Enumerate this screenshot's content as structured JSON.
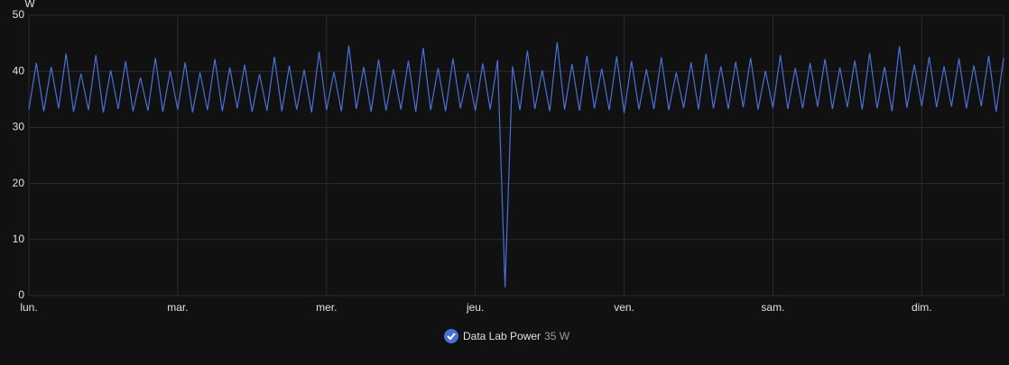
{
  "chart_data": {
    "type": "line",
    "y_label": "W",
    "xlim": [
      0,
      6.55
    ],
    "xticks": [
      {
        "value": 0,
        "label": "lun."
      },
      {
        "value": 1,
        "label": "mar."
      },
      {
        "value": 2,
        "label": "mer."
      },
      {
        "value": 3,
        "label": "jeu."
      },
      {
        "value": 4,
        "label": "ven."
      },
      {
        "value": 5,
        "label": "sam."
      },
      {
        "value": 6,
        "label": "dim."
      }
    ],
    "ylim": [
      0,
      50
    ],
    "yticks": [
      0,
      10,
      20,
      30,
      40,
      50
    ],
    "grid": true,
    "current_state": "35 W",
    "x": [
      0,
      0.05,
      0.1,
      0.15,
      0.2,
      0.25,
      0.3,
      0.35,
      0.4,
      0.45,
      0.5,
      0.55,
      0.6,
      0.65,
      0.7,
      0.75,
      0.8,
      0.85,
      0.9,
      0.95,
      1,
      1.05,
      1.1,
      1.15,
      1.2,
      1.25,
      1.3,
      1.35,
      1.4,
      1.45,
      1.5,
      1.55,
      1.6,
      1.65,
      1.7,
      1.75,
      1.8,
      1.85,
      1.9,
      1.95,
      2,
      2.05,
      2.1,
      2.15,
      2.2,
      2.25,
      2.3,
      2.35,
      2.4,
      2.45,
      2.5,
      2.55,
      2.6,
      2.65,
      2.7,
      2.75,
      2.8,
      2.85,
      2.9,
      2.95,
      3,
      3.05,
      3.1,
      3.15,
      3.2,
      3.25,
      3.3,
      3.35,
      3.4,
      3.45,
      3.5,
      3.55,
      3.6,
      3.65,
      3.7,
      3.75,
      3.8,
      3.85,
      3.9,
      3.95,
      4,
      4.05,
      4.1,
      4.15,
      4.2,
      4.25,
      4.3,
      4.35,
      4.4,
      4.45,
      4.5,
      4.55,
      4.6,
      4.65,
      4.7,
      4.75,
      4.8,
      4.85,
      4.9,
      4.95,
      5,
      5.05,
      5.1,
      5.15,
      5.2,
      5.25,
      5.3,
      5.35,
      5.4,
      5.45,
      5.5,
      5.55,
      5.6,
      5.65,
      5.7,
      5.75,
      5.8,
      5.85,
      5.9,
      5.95,
      6,
      6.05,
      6.1,
      6.15,
      6.2,
      6.25,
      6.3,
      6.35,
      6.4,
      6.45,
      6.5,
      6.55
    ],
    "series": [
      {
        "name": "Data Lab Power",
        "color": "#4a6fd6",
        "values": [
          33.2,
          41.5,
          32.9,
          40.8,
          33.4,
          43.2,
          32.8,
          39.6,
          33.1,
          42.9,
          32.7,
          40.2,
          33.3,
          41.8,
          32.9,
          38.9,
          33.0,
          42.4,
          32.8,
          40.1,
          33.2,
          41.6,
          32.7,
          39.8,
          33.1,
          42.2,
          32.9,
          40.7,
          33.4,
          41.2,
          32.8,
          39.5,
          33.0,
          42.6,
          32.9,
          41.0,
          33.2,
          40.3,
          32.7,
          43.5,
          33.1,
          39.9,
          32.9,
          44.6,
          33.3,
          40.8,
          32.8,
          42.1,
          33.0,
          40.4,
          33.2,
          41.9,
          32.8,
          44.2,
          33.1,
          40.6,
          32.9,
          42.3,
          33.4,
          39.7,
          33.0,
          41.4,
          33.2,
          42.0,
          1.5,
          40.9,
          33.1,
          43.7,
          33.3,
          40.2,
          32.9,
          45.2,
          33.2,
          41.3,
          33.0,
          42.8,
          33.4,
          40.5,
          33.1,
          42.7,
          32.6,
          41.8,
          33.2,
          40.4,
          33.3,
          42.5,
          33.1,
          39.8,
          33.5,
          41.6,
          33.2,
          43.1,
          33.4,
          40.9,
          33.3,
          41.7,
          33.6,
          42.4,
          33.2,
          40.1,
          33.5,
          42.9,
          33.3,
          40.6,
          33.4,
          41.5,
          33.7,
          42.2,
          33.3,
          40.7,
          33.6,
          41.9,
          33.2,
          43.3,
          33.4,
          40.8,
          32.9,
          44.5,
          33.5,
          41.2,
          33.8,
          42.6,
          33.6,
          40.9,
          33.7,
          42.3,
          33.4,
          41.1,
          33.8,
          42.8,
          32.8,
          42.4
        ]
      }
    ]
  }
}
